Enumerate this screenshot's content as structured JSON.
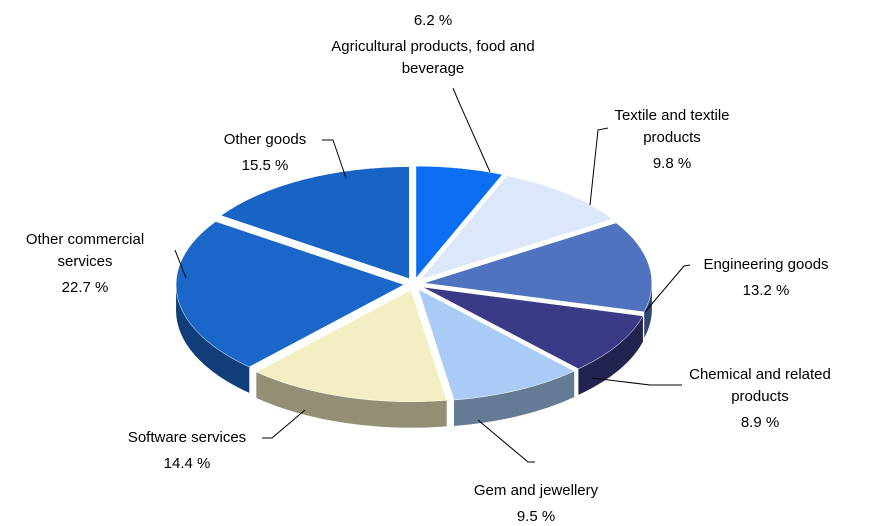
{
  "chart_data": {
    "type": "pie",
    "categories": [
      "Agricultural products, food and beverage",
      "Textile and textile products",
      "Engineering goods",
      "Chemical and related products",
      "Gem and jewellery",
      "Software services",
      "Other commercial services",
      "Other goods"
    ],
    "values": [
      6.2,
      9.8,
      13.2,
      8.9,
      9.5,
      14.4,
      22.7,
      15.5
    ],
    "value_labels": [
      "6.2 %",
      "9.8 %",
      "13.2 %",
      "8.9 %",
      "9.5 %",
      "14.4 %",
      "22.7 %",
      "15.5 %"
    ],
    "colors": [
      "#0b6ef2",
      "#dce8fa",
      "#4f73be",
      "#3b3a86",
      "#a9cbf6",
      "#f4efc2",
      "#1a67c9",
      "#1764c4"
    ]
  }
}
